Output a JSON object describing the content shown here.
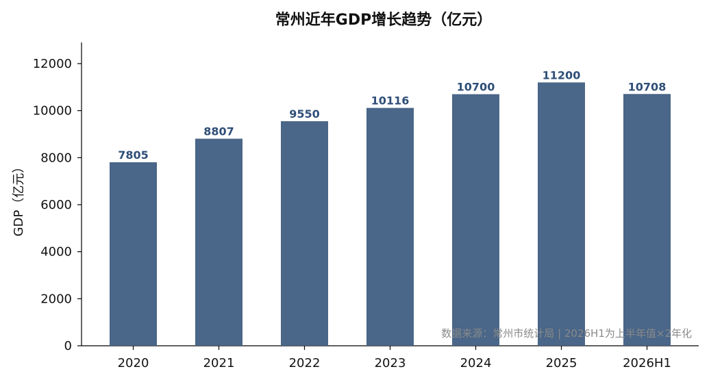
{
  "chart_data": {
    "type": "bar",
    "title": "常州近年GDP增长趋势（亿元）",
    "xlabel": "",
    "ylabel": "GDP（亿元）",
    "categories": [
      "2020",
      "2021",
      "2022",
      "2023",
      "2024",
      "2025",
      "2026H1"
    ],
    "values": [
      7805,
      8807,
      9550,
      10116,
      10700,
      11200,
      10708
    ],
    "ylim": [
      0,
      12900
    ],
    "yticks": [
      0,
      2000,
      4000,
      6000,
      8000,
      10000,
      12000
    ],
    "bar_color": "#4a6688",
    "label_color": "#2f4f78",
    "grid": false,
    "annotation": "数据来源：常州市统计局 | 2026H1为上半年值×2年化"
  }
}
